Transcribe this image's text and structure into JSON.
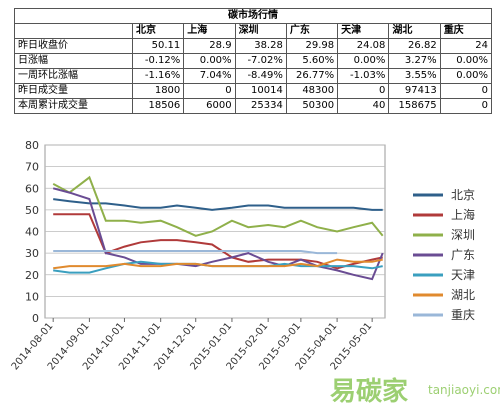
{
  "table": {
    "title": "碳市场行情",
    "header": [
      "北京",
      "上海",
      "深圳",
      "广东",
      "天津",
      "湖北",
      "重庆"
    ],
    "rows": [
      [
        "昨日收盘价",
        "50.11",
        "28.9",
        "38.28",
        "29.98",
        "24.08",
        "26.82",
        "24"
      ],
      [
        "日涨幅",
        "-0.12%",
        "0.00%",
        "-7.02%",
        "5.60%",
        "0.00%",
        "3.27%",
        "0.00%"
      ],
      [
        "一周环比涨幅",
        "-1.16%",
        "7.04%",
        "-8.49%",
        "26.77%",
        "-1.03%",
        "3.55%",
        "0.00%"
      ],
      [
        "昨日成交量",
        "1800",
        "0",
        "10014",
        "48300",
        "0",
        "97413",
        "0"
      ],
      [
        "本周累计成交量",
        "18506",
        "6000",
        "25334",
        "50300",
        "40",
        "158675",
        "0"
      ]
    ]
  },
  "chart_data": {
    "type": "line",
    "x": [
      "2014-08-01",
      "2014-08-15",
      "2014-09-01",
      "2014-09-15",
      "2014-10-01",
      "2014-10-15",
      "2014-11-01",
      "2014-11-15",
      "2014-12-01",
      "2014-12-15",
      "2015-01-01",
      "2015-01-15",
      "2015-02-01",
      "2015-02-15",
      "2015-03-01",
      "2015-03-15",
      "2015-04-01",
      "2015-04-15",
      "2015-05-01",
      "2015-05-10"
    ],
    "xlim": [
      "2014-07-25",
      "2015-05-12"
    ],
    "xticks": [
      "2014-08-01",
      "2014-09-01",
      "2014-10-01",
      "2014-11-01",
      "2014-12-01",
      "2015-01-01",
      "2015-02-01",
      "2015-03-01",
      "2015-04-01",
      "2015-05-01"
    ],
    "ylim": [
      0,
      80
    ],
    "yticks": [
      0,
      10,
      20,
      30,
      40,
      50,
      60,
      70,
      80
    ],
    "legend": "right",
    "series": [
      {
        "name": "北京",
        "color": "#2e5f8a",
        "values": [
          55,
          54,
          53,
          53,
          52,
          51,
          51,
          52,
          51,
          50,
          51,
          52,
          52,
          51,
          51,
          51,
          51,
          51,
          50,
          50
        ]
      },
      {
        "name": "上海",
        "color": "#b03a3a",
        "values": [
          48,
          48,
          48,
          30,
          33,
          35,
          36,
          36,
          35,
          34,
          28,
          26,
          27,
          27,
          27,
          26,
          23,
          25,
          27,
          28
        ]
      },
      {
        "name": "深圳",
        "color": "#8fb04a",
        "values": [
          62,
          58,
          65,
          45,
          45,
          44,
          45,
          42,
          38,
          40,
          45,
          42,
          43,
          42,
          45,
          42,
          40,
          42,
          44,
          38
        ]
      },
      {
        "name": "广东",
        "color": "#6a4c93",
        "values": [
          60,
          58,
          55,
          30,
          28,
          25,
          25,
          25,
          24,
          26,
          28,
          30,
          26,
          24,
          27,
          24,
          22,
          20,
          18,
          30
        ]
      },
      {
        "name": "天津",
        "color": "#3a9fbf",
        "values": [
          22,
          21,
          21,
          23,
          25,
          26,
          25,
          25,
          25,
          24,
          24,
          24,
          24,
          25,
          24,
          24,
          24,
          24,
          23,
          24
        ]
      },
      {
        "name": "湖北",
        "color": "#e08a2e",
        "values": [
          23,
          24,
          24,
          24,
          25,
          24,
          24,
          25,
          25,
          24,
          24,
          24,
          24,
          24,
          25,
          24,
          27,
          26,
          26,
          27
        ]
      },
      {
        "name": "重庆",
        "color": "#9ab7d8",
        "values": [
          31,
          31,
          31,
          31,
          31,
          31,
          31,
          31,
          31,
          31,
          31,
          31,
          31,
          31,
          31,
          30,
          30,
          null,
          null,
          null
        ]
      }
    ],
    "watermark": [
      "易碳家",
      "tanjiaoyi.com"
    ]
  }
}
